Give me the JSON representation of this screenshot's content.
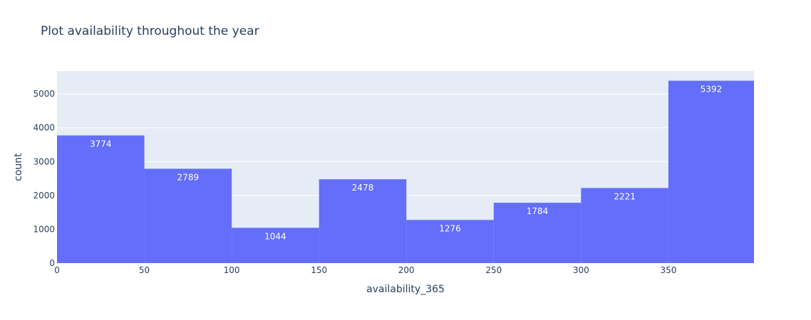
{
  "chart_data": {
    "type": "bar",
    "title": "Plot availability throughout the year",
    "xlabel": "availability_365",
    "ylabel": "count",
    "bins": [
      {
        "x0": 0,
        "x1": 50,
        "value": 3774
      },
      {
        "x0": 50,
        "x1": 100,
        "value": 2789
      },
      {
        "x0": 100,
        "x1": 150,
        "value": 1044
      },
      {
        "x0": 150,
        "x1": 200,
        "value": 2478
      },
      {
        "x0": 200,
        "x1": 250,
        "value": 1276
      },
      {
        "x0": 250,
        "x1": 300,
        "value": 1784
      },
      {
        "x0": 300,
        "x1": 350,
        "value": 2221
      },
      {
        "x0": 350,
        "x1": 400,
        "value": 5392
      }
    ],
    "xlim": [
      0,
      399
    ],
    "ylim": [
      0,
      5676
    ],
    "xticks": [
      0,
      50,
      100,
      150,
      200,
      250,
      300,
      350
    ],
    "yticks": [
      0,
      1000,
      2000,
      3000,
      4000,
      5000
    ],
    "grid": true,
    "colors": {
      "bar": "#636efa",
      "plot_bg": "#e5ecf6",
      "grid": "#ffffff",
      "text": "#2a3f5f",
      "bar_label": "#ffffff"
    }
  }
}
